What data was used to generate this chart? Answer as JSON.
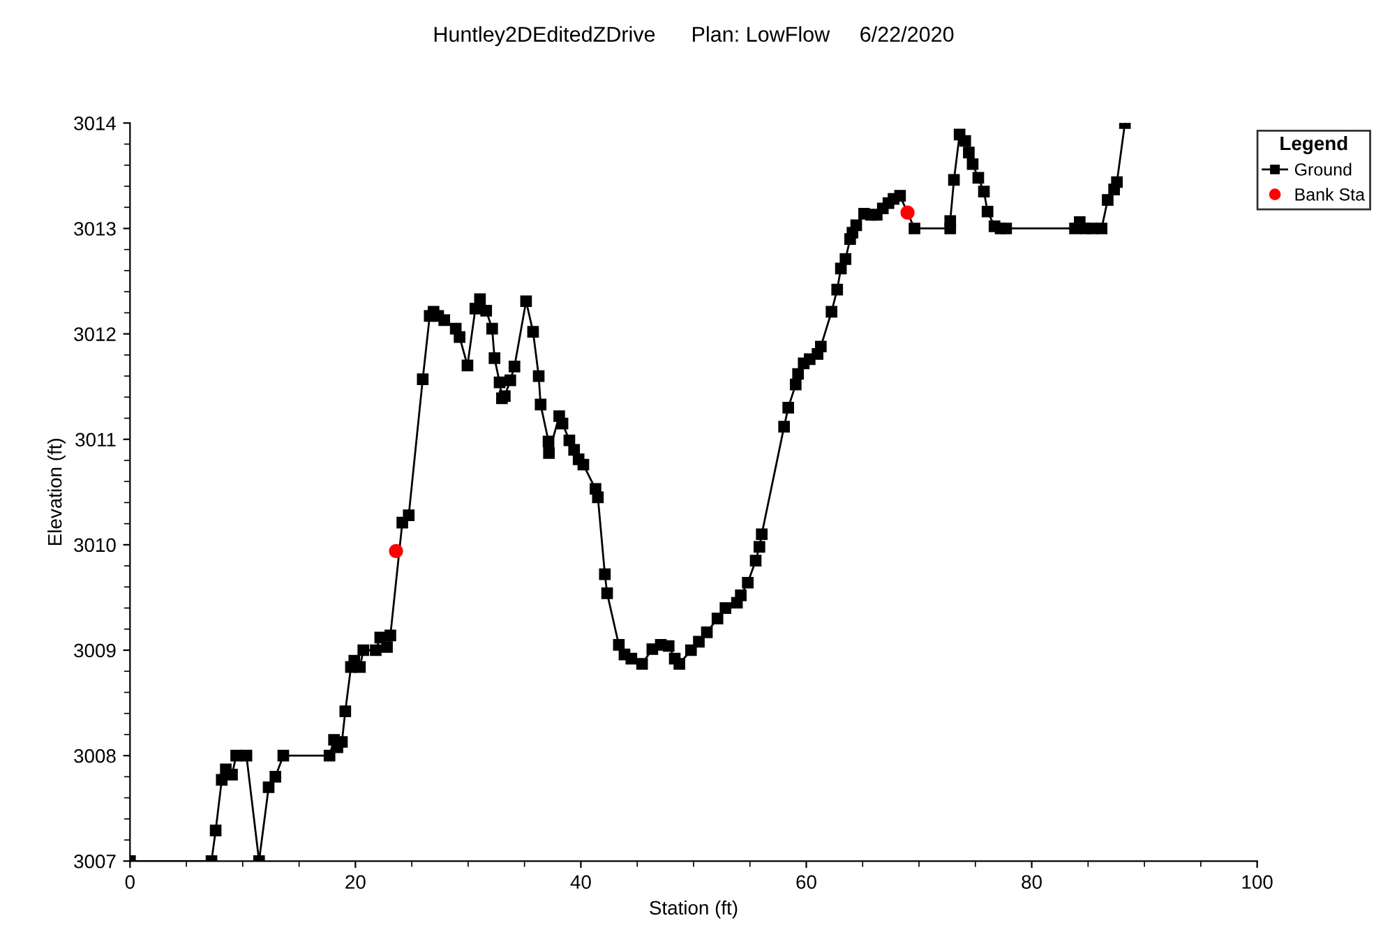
{
  "chart_data": {
    "type": "line",
    "title": "Huntley2DEditedZDrive      Plan: LowFlow     6/22/2020",
    "xlabel": "Station (ft)",
    "ylabel": "Elevation (ft)",
    "legend_title": "Legend",
    "legend": "top right",
    "grid": false,
    "xlim": [
      0,
      100
    ],
    "xticks": [
      0,
      20,
      40,
      60,
      80,
      100
    ],
    "ylim": [
      3007,
      3014
    ],
    "yticks": [
      3007,
      3008,
      3009,
      3010,
      3011,
      3012,
      3013,
      3014
    ],
    "series": [
      {
        "name": "Ground",
        "color": "#000000",
        "marker": "square",
        "line_style": "solid",
        "x": [
          0,
          7.23,
          7.6,
          8.14,
          8.5,
          9.05,
          9.42,
          10.33,
          11.45,
          12.3,
          12.9,
          13.6,
          17.7,
          18.1,
          18.4,
          18.8,
          19.1,
          19.6,
          19.9,
          20.4,
          20.7,
          21.8,
          22.2,
          22.8,
          23.1,
          24.16,
          24.73,
          25.97,
          26.59,
          26.93,
          27.34,
          27.88,
          28.9,
          29.24,
          29.94,
          30.64,
          31.05,
          31.6,
          32.13,
          32.34,
          32.79,
          33.0,
          33.25,
          33.74,
          34.11,
          35.14,
          35.76,
          36.26,
          36.43,
          37.13,
          37.17,
          38.08,
          38.37,
          38.98,
          39.4,
          39.8,
          40.22,
          41.3,
          41.51,
          42.13,
          42.33,
          43.37,
          43.87,
          44.48,
          45.43,
          46.34,
          47.09,
          47.79,
          48.33,
          48.74,
          49.77,
          50.47,
          51.18,
          52.12,
          52.83,
          53.85,
          54.19,
          54.81,
          55.51,
          55.84,
          56.05,
          58.03,
          58.4,
          59.06,
          59.27,
          59.77,
          60.3,
          61.0,
          61.29,
          62.24,
          62.74,
          63.07,
          63.48,
          63.89,
          64.1,
          64.43,
          65.13,
          65.75,
          66.25,
          66.79,
          67.29,
          67.74,
          68.32,
          69.6,
          72.77,
          72.77,
          73.1,
          73.6,
          74.1,
          74.42,
          74.76,
          75.26,
          75.76,
          76.08,
          76.7,
          77.24,
          77.73,
          83.84,
          84.26,
          84.76,
          85.38,
          86.2,
          86.74,
          87.31,
          87.56,
          88.27
        ],
        "values": [
          3007,
          3007,
          3007.29,
          3007.77,
          3007.87,
          3007.82,
          3008,
          3008,
          3007,
          3007.7,
          3007.8,
          3008,
          3008,
          3008.15,
          3008.08,
          3008.13,
          3008.42,
          3008.84,
          3008.9,
          3008.84,
          3009,
          3009,
          3009.12,
          3009.03,
          3009.14,
          3010.21,
          3010.28,
          3011.57,
          3012.17,
          3012.21,
          3012.17,
          3012.13,
          3012.05,
          3011.97,
          3011.7,
          3012.24,
          3012.33,
          3012.22,
          3012.05,
          3011.77,
          3011.54,
          3011.39,
          3011.41,
          3011.56,
          3011.69,
          3012.31,
          3012.02,
          3011.6,
          3011.33,
          3010.98,
          3010.87,
          3011.22,
          3011.15,
          3010.99,
          3010.9,
          3010.81,
          3010.76,
          3010.53,
          3010.45,
          3009.72,
          3009.54,
          3009.05,
          3008.96,
          3008.92,
          3008.87,
          3009.01,
          3009.05,
          3009.04,
          3008.92,
          3008.87,
          3009.0,
          3009.08,
          3009.17,
          3009.3,
          3009.4,
          3009.45,
          3009.52,
          3009.64,
          3009.85,
          3009.98,
          3010.1,
          3011.12,
          3011.3,
          3011.52,
          3011.62,
          3011.72,
          3011.76,
          3011.81,
          3011.88,
          3012.21,
          3012.42,
          3012.62,
          3012.71,
          3012.9,
          3012.96,
          3013.03,
          3013.14,
          3013.13,
          3013.13,
          3013.19,
          3013.24,
          3013.28,
          3013.31,
          3013.0,
          3013.0,
          3013.07,
          3013.46,
          3013.89,
          3013.83,
          3013.72,
          3013.61,
          3013.48,
          3013.35,
          3013.16,
          3013.02,
          3013.0,
          3013.0,
          3013.0,
          3013.06,
          3013.0,
          3013.0,
          3013.0,
          3013.27,
          3013.37,
          3013.44,
          3014.0
        ]
      },
      {
        "name": "Bank Sta",
        "color": "#ff0000",
        "type": "scatter",
        "marker": "circle",
        "x": [
          23.6,
          68.98
        ],
        "values": [
          3009.94,
          3013.15
        ]
      }
    ]
  }
}
